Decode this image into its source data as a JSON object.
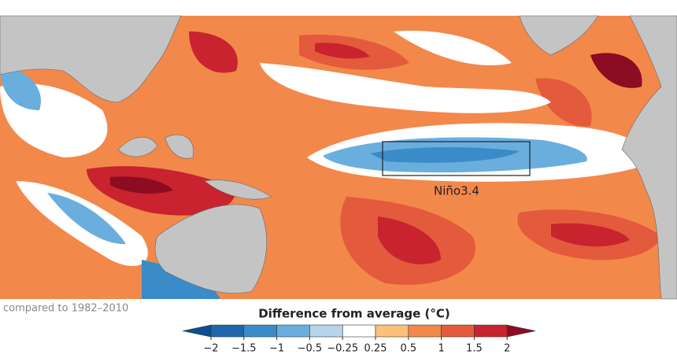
{
  "map": {
    "region_label": "Niño3.4",
    "note": "compared to 1982–2010"
  },
  "legend": {
    "title": "Difference from average (°C)",
    "ticks": [
      {
        "value": -2,
        "label": "−2"
      },
      {
        "value": -1.5,
        "label": "−1.5"
      },
      {
        "value": -1,
        "label": "−1"
      },
      {
        "value": -0.5,
        "label": "−0.5"
      },
      {
        "value": -0.25,
        "label": "−0.25"
      },
      0.25,
      0.5,
      1,
      1.5,
      2
    ],
    "colors": [
      "#0b4f91",
      "#1f66ad",
      "#3a8cc8",
      "#6aaede",
      "#b6d5ec",
      "#ffffff",
      "#fdc078",
      "#f3884b",
      "#e45a3c",
      "#c8232f",
      "#8c0c22"
    ]
  }
}
